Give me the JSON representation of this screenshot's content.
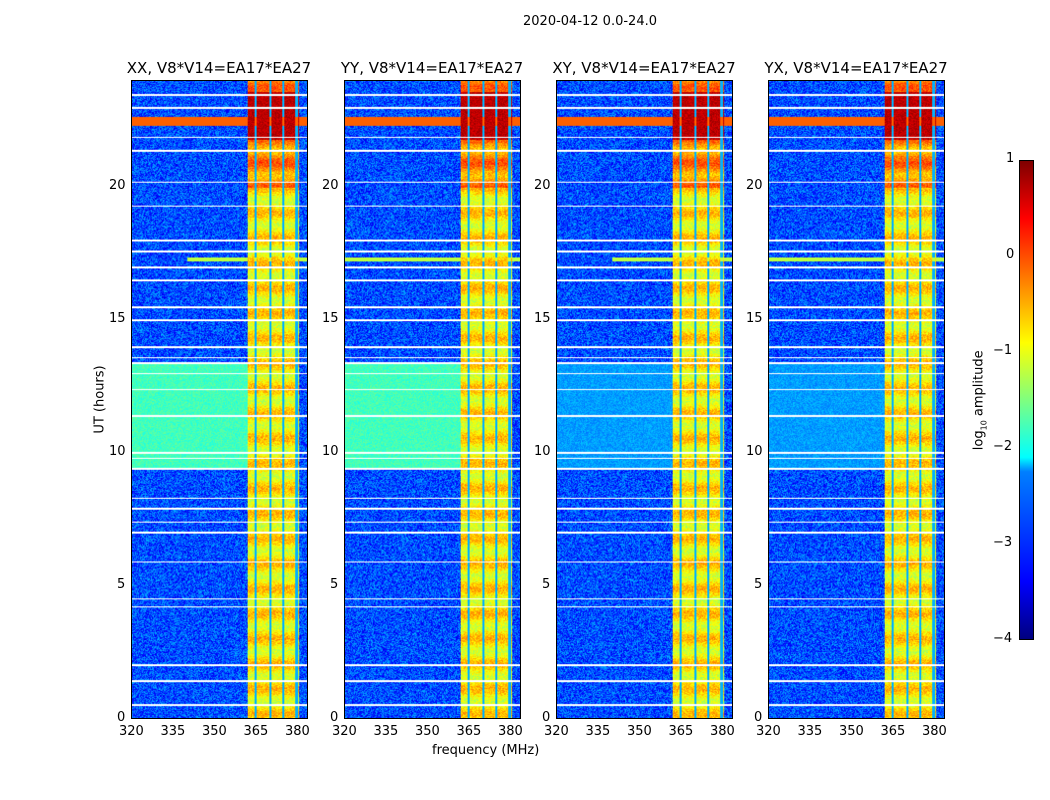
{
  "chart_data": {
    "type": "heatmap",
    "title": "2020-04-12 0.0-24.0",
    "xlabel": "frequency (MHz)",
    "ylabel": "UT (hours)",
    "xlim": [
      320,
      384
    ],
    "ylim": [
      0,
      24
    ],
    "xticks": [
      "320",
      "335",
      "350",
      "365",
      "380"
    ],
    "yticks": [
      "0",
      "5",
      "10",
      "15",
      "20"
    ],
    "colorbar": {
      "label": "log10 amplitude",
      "label_main": "log",
      "label_sub": "10",
      "label_rest": " amplitude",
      "range": [
        -4,
        1
      ],
      "ticks": [
        "1",
        "0",
        "−1",
        "−2",
        "−3",
        "−4"
      ],
      "colormap": "jet"
    },
    "panels": [
      {
        "title": "XX, V8*V14=EA17*EA27",
        "low_band_level": -1.8
      },
      {
        "title": "YY, V8*V14=EA17*EA27",
        "low_band_level": -1.8
      },
      {
        "title": "XY, V8*V14=EA17*EA27",
        "low_band_level": -2.6
      },
      {
        "title": "YX, V8*V14=EA17*EA27",
        "low_band_level": -2.6
      }
    ],
    "background_level": -3,
    "bright_band_MHz": [
      362,
      381
    ],
    "bright_band_level": -0.8,
    "band_gaps_MHz": [
      365,
      370.5,
      375,
      380
    ],
    "strong_rfi_hours": [
      22.5,
      17.3
    ],
    "flagged_hours": [
      0.5,
      1.4,
      2.0,
      4.2,
      4.5,
      5.9,
      7.0,
      7.4,
      7.9,
      8.3,
      9.4,
      9.8,
      10.0,
      11.4,
      12.4,
      13.0,
      13.4,
      13.6,
      14.0,
      15.0,
      15.5,
      16.5,
      17.0,
      17.6,
      18.0,
      19.3,
      20.2,
      21.4,
      21.9,
      23.0,
      23.5
    ]
  }
}
